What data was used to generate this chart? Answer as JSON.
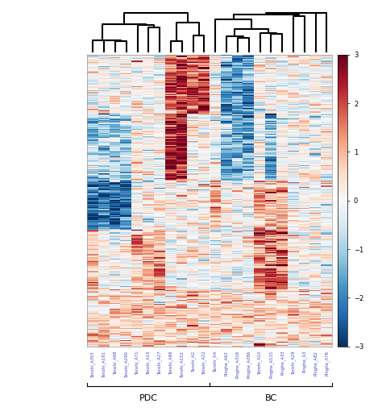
{
  "pdc_samples": [
    "Tanshi_A71",
    "Tanshi_A15",
    "Tanshi_A27",
    "Tanshi_A355",
    "Tanshi_A68",
    "Tanshi_A191",
    "Tanshi_A290",
    "Tanshi_A2",
    "Tanshi_A86",
    "Tanshi_A152",
    "Tanshi_A22"
  ],
  "bc_samples": [
    "Pinghe_A318",
    "Pinghe_A62",
    "Pinghe_A286",
    "Pinghe_A515",
    "Pinghe_A33",
    "Tanshi_A10",
    "Tanshi_A4",
    "Pinghe_A82",
    "Tanshi_A29",
    "Pinghe_A3",
    "Pinghe_A78"
  ],
  "n_genes": 300,
  "vmin": -3,
  "vmax": 3,
  "pdc_label": "PDC",
  "bc_label": "BC",
  "colorbar_ticks": [
    3,
    2,
    1,
    0,
    -1,
    -2,
    -3
  ],
  "seed": 42,
  "cmap": "RdBu_r",
  "figsize": [
    4.74,
    5.21
  ],
  "dpi": 100,
  "tick_label_color": "#4444cc",
  "label_fontsize": 8,
  "tick_fontsize": 3.8
}
